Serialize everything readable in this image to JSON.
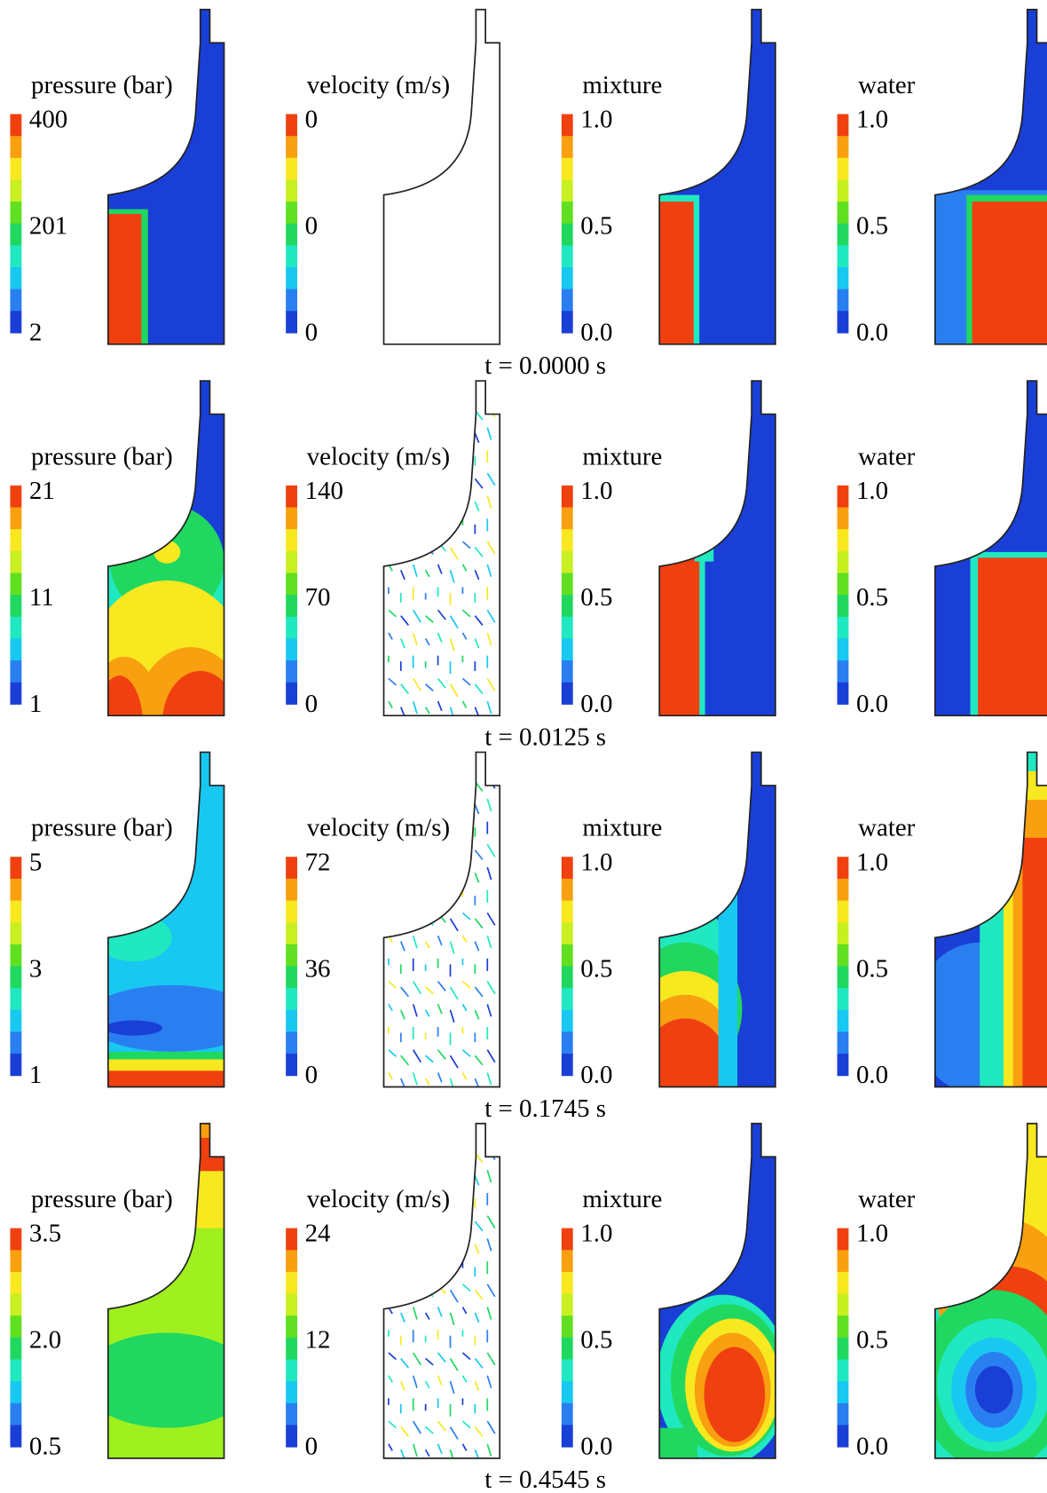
{
  "rows": [
    {
      "time": "t = 0.0000 s",
      "panels": [
        {
          "title": "pressure (bar)",
          "scale": [
            "400",
            "201",
            "2"
          ]
        },
        {
          "title": "velocity (m/s)",
          "scale": [
            "0",
            "0",
            "0"
          ]
        },
        {
          "title": "mixture",
          "scale": [
            "1.0",
            "0.5",
            "0.0"
          ]
        },
        {
          "title": "water",
          "scale": [
            "1.0",
            "0.5",
            "0.0"
          ]
        }
      ]
    },
    {
      "time": "t = 0.0125 s",
      "panels": [
        {
          "title": "pressure (bar)",
          "scale": [
            "21",
            "11",
            "1"
          ]
        },
        {
          "title": "velocity (m/s)",
          "scale": [
            "140",
            "70",
            "0"
          ]
        },
        {
          "title": "mixture",
          "scale": [
            "1.0",
            "0.5",
            "0.0"
          ]
        },
        {
          "title": "water",
          "scale": [
            "1.0",
            "0.5",
            "0.0"
          ]
        }
      ]
    },
    {
      "time": "t = 0.1745 s",
      "panels": [
        {
          "title": "pressure (bar)",
          "scale": [
            "5",
            "3",
            "1"
          ]
        },
        {
          "title": "velocity (m/s)",
          "scale": [
            "72",
            "36",
            "0"
          ]
        },
        {
          "title": "mixture",
          "scale": [
            "1.0",
            "0.5",
            "0.0"
          ]
        },
        {
          "title": "water",
          "scale": [
            "1.0",
            "0.5",
            "0.0"
          ]
        }
      ]
    },
    {
      "time": "t = 0.4545 s",
      "panels": [
        {
          "title": "pressure (bar)",
          "scale": [
            "3.5",
            "2.0",
            "0.5"
          ]
        },
        {
          "title": "velocity (m/s)",
          "scale": [
            "24",
            "12",
            "0"
          ]
        },
        {
          "title": "mixture",
          "scale": [
            "1.0",
            "0.5",
            "0.0"
          ]
        },
        {
          "title": "water",
          "scale": [
            "1.0",
            "0.5",
            "0.0"
          ]
        }
      ]
    }
  ]
}
